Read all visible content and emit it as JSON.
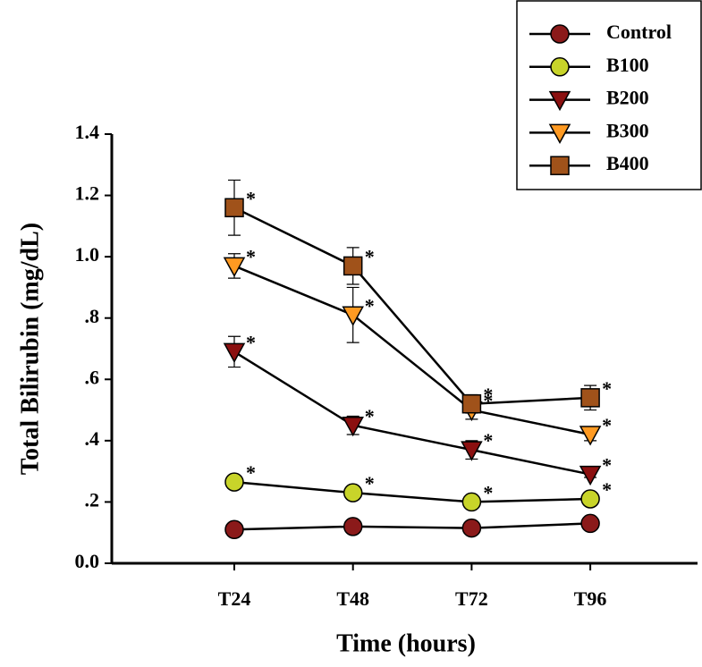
{
  "chart_data": {
    "type": "line",
    "x_label": "Time (hours)",
    "y_label": "Total Bilirubin (mg/dL)",
    "categories": [
      "T24",
      "T48",
      "T72",
      "T96"
    ],
    "ylim": [
      0,
      1.4
    ],
    "yticks": [
      {
        "value": 0,
        "label": "0.0"
      },
      {
        "value": 0.2,
        "label": ".2"
      },
      {
        "value": 0.4,
        "label": ".4"
      },
      {
        "value": 0.6,
        "label": ".6"
      },
      {
        "value": 0.8,
        "label": ".8"
      },
      {
        "value": 1.0,
        "label": "1.0"
      },
      1.2,
      1.4
    ],
    "legend_position": "upper right",
    "series": [
      {
        "name": "Control",
        "marker": "circle",
        "color": "#8b1a1a",
        "values": [
          0.11,
          0.12,
          0.115,
          0.13
        ],
        "errors": [
          0.01,
          0.01,
          0.01,
          0.01
        ]
      },
      {
        "name": "B100",
        "marker": "circle",
        "color": "#c8d42a",
        "values": [
          0.265,
          0.23,
          0.2,
          0.21
        ],
        "errors": [
          0.01,
          0.01,
          0.01,
          0.01
        ],
        "annotations": [
          "*",
          "*",
          "*",
          "*"
        ]
      },
      {
        "name": "B200",
        "marker": "triangle-down",
        "color": "#8b1010",
        "values": [
          0.69,
          0.45,
          0.37,
          0.29
        ],
        "errors": [
          0.05,
          0.03,
          0.03,
          0.01
        ],
        "annotations": [
          "*",
          "*",
          "*",
          "*"
        ]
      },
      {
        "name": "B300",
        "marker": "triangle-down",
        "color": "#ff9a22",
        "values": [
          0.97,
          0.81,
          0.5,
          0.42
        ],
        "errors": [
          0.04,
          0.09,
          0.03,
          0.02
        ],
        "annotations": [
          "*",
          "*",
          "*",
          "*"
        ]
      },
      {
        "name": "B400",
        "marker": "square",
        "color": "#a0521a",
        "values": [
          1.16,
          0.97,
          0.52,
          0.54
        ],
        "errors": [
          0.09,
          0.06,
          0.03,
          0.04
        ],
        "annotations": [
          "*",
          "*",
          "*",
          "*"
        ]
      }
    ]
  }
}
